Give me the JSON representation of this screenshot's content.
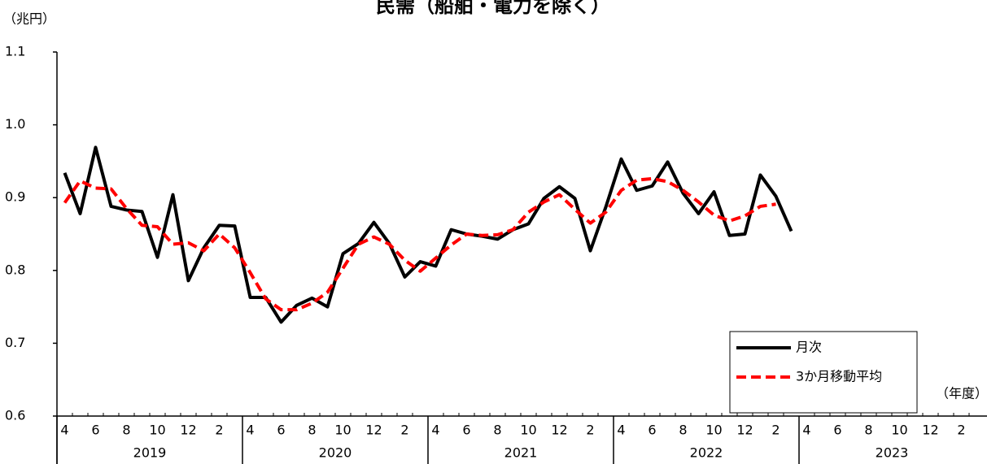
{
  "chart_data": {
    "type": "line",
    "title": "民需（船舶・電力を除く）",
    "y_unit": "（兆円）",
    "x_unit": "（年度）",
    "categories": [
      "4",
      null,
      "6",
      null,
      "8",
      null,
      "10",
      null,
      "12",
      null,
      "2",
      null,
      "4",
      null,
      "6",
      null,
      "8",
      null,
      "10",
      null,
      "12",
      null,
      "2",
      null,
      "4",
      null,
      "6",
      null,
      "8",
      null,
      "10",
      null,
      "12",
      null,
      "2",
      null,
      "4",
      null,
      "6",
      null,
      "8",
      null,
      "10",
      null,
      "12",
      null,
      "2",
      null,
      "4",
      null,
      "6",
      null,
      "8",
      null,
      "10",
      null,
      "12",
      null,
      "2",
      null
    ],
    "years": [
      "2019",
      "2020",
      "2021",
      "2022",
      "2023"
    ],
    "ylim": [
      0.6,
      1.1
    ],
    "yticks": [
      0.6,
      0.7,
      0.8,
      0.9,
      {
        "value": 1,
        "label": "1.0"
      },
      1.1
    ],
    "legend": "bottom-right",
    "series": [
      {
        "name": "月次",
        "color": "#000000",
        "dash": false,
        "values": [
          0.934,
          0.878,
          0.969,
          0.888,
          0.883,
          0.881,
          0.818,
          0.904,
          0.786,
          0.831,
          0.862,
          0.861,
          0.763,
          0.763,
          0.729,
          0.752,
          0.762,
          0.75,
          0.823,
          0.837,
          0.866,
          0.837,
          0.791,
          0.812,
          0.806,
          0.856,
          0.85,
          0.847,
          0.843,
          0.856,
          0.864,
          0.899,
          0.915,
          0.899,
          0.827,
          0.887,
          0.953,
          0.91,
          0.916,
          0.949,
          0.906,
          0.878,
          0.908,
          0.848,
          0.85,
          0.931,
          0.902,
          0.854,
          null,
          null,
          null,
          null,
          null,
          null,
          null,
          null,
          null,
          null,
          null,
          null
        ]
      },
      {
        "name": "3か月移動平均",
        "color": "#ff0000",
        "dash": true,
        "values": [
          0.893,
          0.923,
          0.913,
          0.912,
          0.885,
          0.862,
          0.86,
          0.836,
          0.838,
          0.827,
          0.85,
          0.831,
          0.797,
          0.761,
          0.746,
          0.746,
          0.755,
          0.77,
          0.803,
          0.836,
          0.846,
          0.836,
          0.814,
          0.799,
          0.817,
          0.835,
          0.85,
          0.848,
          0.849,
          0.856,
          0.88,
          0.894,
          0.904,
          0.884,
          0.865,
          0.88,
          0.91,
          0.924,
          0.926,
          0.922,
          0.91,
          0.894,
          0.876,
          0.868,
          0.875,
          0.888,
          0.891,
          null,
          null,
          null,
          null,
          null,
          null,
          null,
          null,
          null,
          null,
          null,
          null,
          null
        ]
      }
    ]
  }
}
